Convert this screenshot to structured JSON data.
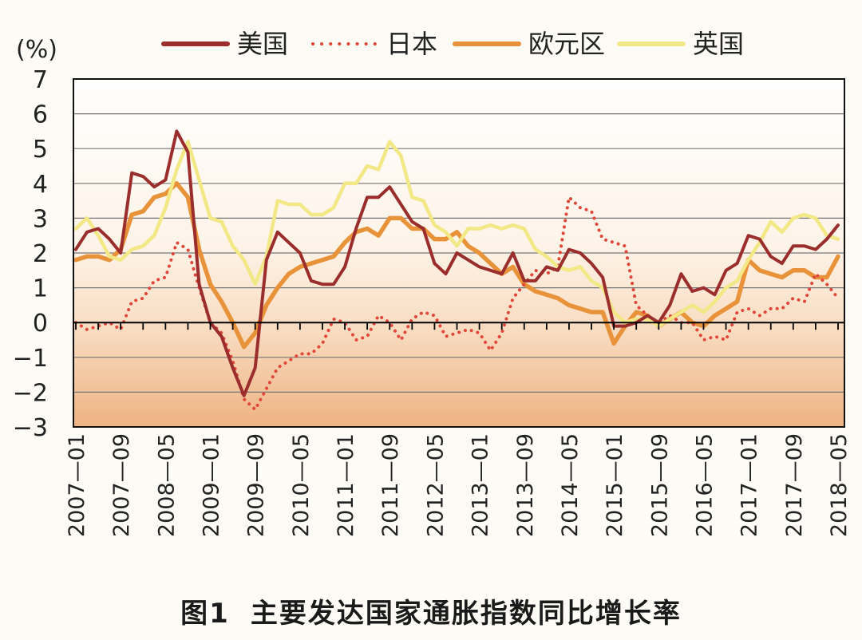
{
  "figure": {
    "number": "图1",
    "title": "主要发达国家通胀指数同比增长率"
  },
  "chart_data": {
    "type": "line",
    "ylabel": "(%)",
    "ylim": [
      -3,
      7
    ],
    "yticks": [
      "7",
      "6",
      "5",
      "4",
      "3",
      "2",
      "1",
      "0",
      "−1",
      "−2",
      "−3"
    ],
    "ytick_values": [
      7,
      6,
      5,
      4,
      3,
      2,
      1,
      0,
      -1,
      -2,
      -3
    ],
    "xticks": [
      "2007—01",
      "2007—09",
      "2008—05",
      "2009—01",
      "2009—09",
      "2010—05",
      "2011—01",
      "2011—09",
      "2012—05",
      "2013—01",
      "2013—09",
      "2014—05",
      "2015—01",
      "2015—09",
      "2016—05",
      "2017—01",
      "2017—09",
      "2018—05"
    ],
    "grid": true,
    "legend_position": "top",
    "series": [
      {
        "name": "美国",
        "color": "#9b2d2d",
        "style": "solid",
        "points": [
          [
            "2007-01",
            2.1
          ],
          [
            "2007-03",
            2.6
          ],
          [
            "2007-05",
            2.7
          ],
          [
            "2007-07",
            2.4
          ],
          [
            "2007-09",
            2.0
          ],
          [
            "2007-11",
            4.3
          ],
          [
            "2008-01",
            4.2
          ],
          [
            "2008-03",
            3.9
          ],
          [
            "2008-05",
            4.1
          ],
          [
            "2008-07",
            5.5
          ],
          [
            "2008-09",
            4.9
          ],
          [
            "2008-11",
            1.1
          ],
          [
            "2009-01",
            0.0
          ],
          [
            "2009-03",
            -0.4
          ],
          [
            "2009-05",
            -1.3
          ],
          [
            "2009-07",
            -2.1
          ],
          [
            "2009-09",
            -1.3
          ],
          [
            "2009-11",
            1.8
          ],
          [
            "2010-01",
            2.6
          ],
          [
            "2010-03",
            2.3
          ],
          [
            "2010-05",
            2.0
          ],
          [
            "2010-07",
            1.2
          ],
          [
            "2010-09",
            1.1
          ],
          [
            "2010-11",
            1.1
          ],
          [
            "2011-01",
            1.6
          ],
          [
            "2011-03",
            2.7
          ],
          [
            "2011-05",
            3.6
          ],
          [
            "2011-07",
            3.6
          ],
          [
            "2011-09",
            3.9
          ],
          [
            "2011-11",
            3.4
          ],
          [
            "2012-01",
            2.9
          ],
          [
            "2012-03",
            2.7
          ],
          [
            "2012-05",
            1.7
          ],
          [
            "2012-07",
            1.4
          ],
          [
            "2012-09",
            2.0
          ],
          [
            "2012-11",
            1.8
          ],
          [
            "2013-01",
            1.6
          ],
          [
            "2013-03",
            1.5
          ],
          [
            "2013-05",
            1.4
          ],
          [
            "2013-07",
            2.0
          ],
          [
            "2013-09",
            1.2
          ],
          [
            "2013-11",
            1.2
          ],
          [
            "2014-01",
            1.6
          ],
          [
            "2014-03",
            1.5
          ],
          [
            "2014-05",
            2.1
          ],
          [
            "2014-07",
            2.0
          ],
          [
            "2014-09",
            1.7
          ],
          [
            "2014-11",
            1.3
          ],
          [
            "2015-01",
            -0.1
          ],
          [
            "2015-03",
            -0.1
          ],
          [
            "2015-05",
            0.0
          ],
          [
            "2015-07",
            0.2
          ],
          [
            "2015-09",
            0.0
          ],
          [
            "2015-11",
            0.5
          ],
          [
            "2016-01",
            1.4
          ],
          [
            "2016-03",
            0.9
          ],
          [
            "2016-05",
            1.0
          ],
          [
            "2016-07",
            0.8
          ],
          [
            "2016-09",
            1.5
          ],
          [
            "2016-11",
            1.7
          ],
          [
            "2017-01",
            2.5
          ],
          [
            "2017-03",
            2.4
          ],
          [
            "2017-05",
            1.9
          ],
          [
            "2017-07",
            1.7
          ],
          [
            "2017-09",
            2.2
          ],
          [
            "2017-11",
            2.2
          ],
          [
            "2018-01",
            2.1
          ],
          [
            "2018-03",
            2.4
          ],
          [
            "2018-05",
            2.8
          ]
        ]
      },
      {
        "name": "日本",
        "color": "#e0463a",
        "style": "dotted",
        "points": [
          [
            "2007-01",
            0.0
          ],
          [
            "2007-03",
            -0.2
          ],
          [
            "2007-05",
            -0.1
          ],
          [
            "2007-07",
            0.0
          ],
          [
            "2007-09",
            -0.2
          ],
          [
            "2007-11",
            0.6
          ],
          [
            "2008-01",
            0.7
          ],
          [
            "2008-03",
            1.2
          ],
          [
            "2008-05",
            1.3
          ],
          [
            "2008-07",
            2.3
          ],
          [
            "2008-09",
            2.1
          ],
          [
            "2008-11",
            1.0
          ],
          [
            "2009-01",
            0.0
          ],
          [
            "2009-03",
            -0.3
          ],
          [
            "2009-05",
            -1.1
          ],
          [
            "2009-07",
            -2.2
          ],
          [
            "2009-09",
            -2.5
          ],
          [
            "2009-11",
            -1.9
          ],
          [
            "2010-01",
            -1.3
          ],
          [
            "2010-03",
            -1.1
          ],
          [
            "2010-05",
            -0.9
          ],
          [
            "2010-07",
            -0.9
          ],
          [
            "2010-09",
            -0.6
          ],
          [
            "2010-11",
            0.1
          ],
          [
            "2011-01",
            0.0
          ],
          [
            "2011-03",
            -0.5
          ],
          [
            "2011-05",
            -0.4
          ],
          [
            "2011-07",
            0.2
          ],
          [
            "2011-09",
            0.0
          ],
          [
            "2011-11",
            -0.5
          ],
          [
            "2012-01",
            0.1
          ],
          [
            "2012-03",
            0.3
          ],
          [
            "2012-05",
            0.2
          ],
          [
            "2012-07",
            -0.4
          ],
          [
            "2012-09",
            -0.3
          ],
          [
            "2012-11",
            -0.2
          ],
          [
            "2013-01",
            -0.3
          ],
          [
            "2013-03",
            -0.8
          ],
          [
            "2013-05",
            -0.3
          ],
          [
            "2013-07",
            0.7
          ],
          [
            "2013-09",
            1.1
          ],
          [
            "2013-11",
            1.5
          ],
          [
            "2014-01",
            1.4
          ],
          [
            "2014-03",
            1.6
          ],
          [
            "2014-05",
            3.6
          ],
          [
            "2014-07",
            3.3
          ],
          [
            "2014-09",
            3.2
          ],
          [
            "2014-11",
            2.4
          ],
          [
            "2015-01",
            2.3
          ],
          [
            "2015-03",
            2.2
          ],
          [
            "2015-05",
            0.5
          ],
          [
            "2015-07",
            0.2
          ],
          [
            "2015-09",
            0.0
          ],
          [
            "2015-11",
            0.2
          ],
          [
            "2016-01",
            0.0
          ],
          [
            "2016-03",
            0.0
          ],
          [
            "2016-05",
            -0.5
          ],
          [
            "2016-07",
            -0.4
          ],
          [
            "2016-09",
            -0.5
          ],
          [
            "2016-11",
            0.3
          ],
          [
            "2017-01",
            0.4
          ],
          [
            "2017-03",
            0.2
          ],
          [
            "2017-05",
            0.4
          ],
          [
            "2017-07",
            0.4
          ],
          [
            "2017-09",
            0.7
          ],
          [
            "2017-11",
            0.6
          ],
          [
            "2018-01",
            1.4
          ],
          [
            "2018-03",
            1.1
          ],
          [
            "2018-05",
            0.7
          ]
        ]
      },
      {
        "name": "欧元区",
        "color": "#e8923a",
        "style": "solid",
        "points": [
          [
            "2007-01",
            1.8
          ],
          [
            "2007-03",
            1.9
          ],
          [
            "2007-05",
            1.9
          ],
          [
            "2007-07",
            1.8
          ],
          [
            "2007-09",
            2.1
          ],
          [
            "2007-11",
            3.1
          ],
          [
            "2008-01",
            3.2
          ],
          [
            "2008-03",
            3.6
          ],
          [
            "2008-05",
            3.7
          ],
          [
            "2008-07",
            4.0
          ],
          [
            "2008-09",
            3.6
          ],
          [
            "2008-11",
            2.1
          ],
          [
            "2009-01",
            1.1
          ],
          [
            "2009-03",
            0.6
          ],
          [
            "2009-05",
            0.0
          ],
          [
            "2009-07",
            -0.7
          ],
          [
            "2009-09",
            -0.3
          ],
          [
            "2009-11",
            0.5
          ],
          [
            "2010-01",
            1.0
          ],
          [
            "2010-03",
            1.4
          ],
          [
            "2010-05",
            1.6
          ],
          [
            "2010-07",
            1.7
          ],
          [
            "2010-09",
            1.8
          ],
          [
            "2010-11",
            1.9
          ],
          [
            "2011-01",
            2.3
          ],
          [
            "2011-03",
            2.6
          ],
          [
            "2011-05",
            2.7
          ],
          [
            "2011-07",
            2.5
          ],
          [
            "2011-09",
            3.0
          ],
          [
            "2011-11",
            3.0
          ],
          [
            "2012-01",
            2.7
          ],
          [
            "2012-03",
            2.7
          ],
          [
            "2012-05",
            2.4
          ],
          [
            "2012-07",
            2.4
          ],
          [
            "2012-09",
            2.6
          ],
          [
            "2012-11",
            2.2
          ],
          [
            "2013-01",
            2.0
          ],
          [
            "2013-03",
            1.7
          ],
          [
            "2013-05",
            1.4
          ],
          [
            "2013-07",
            1.6
          ],
          [
            "2013-09",
            1.1
          ],
          [
            "2013-11",
            0.9
          ],
          [
            "2014-01",
            0.8
          ],
          [
            "2014-03",
            0.7
          ],
          [
            "2014-05",
            0.5
          ],
          [
            "2014-07",
            0.4
          ],
          [
            "2014-09",
            0.3
          ],
          [
            "2014-11",
            0.3
          ],
          [
            "2015-01",
            -0.6
          ],
          [
            "2015-03",
            -0.1
          ],
          [
            "2015-05",
            0.3
          ],
          [
            "2015-07",
            0.2
          ],
          [
            "2015-09",
            -0.1
          ],
          [
            "2015-11",
            0.1
          ],
          [
            "2016-01",
            0.3
          ],
          [
            "2016-03",
            0.0
          ],
          [
            "2016-05",
            -0.1
          ],
          [
            "2016-07",
            0.2
          ],
          [
            "2016-09",
            0.4
          ],
          [
            "2016-11",
            0.6
          ],
          [
            "2017-01",
            1.8
          ],
          [
            "2017-03",
            1.5
          ],
          [
            "2017-05",
            1.4
          ],
          [
            "2017-07",
            1.3
          ],
          [
            "2017-09",
            1.5
          ],
          [
            "2017-11",
            1.5
          ],
          [
            "2018-01",
            1.3
          ],
          [
            "2018-03",
            1.3
          ],
          [
            "2018-05",
            1.9
          ]
        ]
      },
      {
        "name": "英国",
        "color": "#f2e886",
        "style": "solid",
        "points": [
          [
            "2007-01",
            2.7
          ],
          [
            "2007-03",
            3.0
          ],
          [
            "2007-05",
            2.5
          ],
          [
            "2007-07",
            1.9
          ],
          [
            "2007-09",
            1.8
          ],
          [
            "2007-11",
            2.1
          ],
          [
            "2008-01",
            2.2
          ],
          [
            "2008-03",
            2.5
          ],
          [
            "2008-05",
            3.3
          ],
          [
            "2008-07",
            4.4
          ],
          [
            "2008-09",
            5.2
          ],
          [
            "2008-11",
            4.1
          ],
          [
            "2009-01",
            3.0
          ],
          [
            "2009-03",
            2.9
          ],
          [
            "2009-05",
            2.2
          ],
          [
            "2009-07",
            1.8
          ],
          [
            "2009-09",
            1.1
          ],
          [
            "2009-11",
            1.9
          ],
          [
            "2010-01",
            3.5
          ],
          [
            "2010-03",
            3.4
          ],
          [
            "2010-05",
            3.4
          ],
          [
            "2010-07",
            3.1
          ],
          [
            "2010-09",
            3.1
          ],
          [
            "2010-11",
            3.3
          ],
          [
            "2011-01",
            4.0
          ],
          [
            "2011-03",
            4.0
          ],
          [
            "2011-05",
            4.5
          ],
          [
            "2011-07",
            4.4
          ],
          [
            "2011-09",
            5.2
          ],
          [
            "2011-11",
            4.8
          ],
          [
            "2012-01",
            3.6
          ],
          [
            "2012-03",
            3.5
          ],
          [
            "2012-05",
            2.8
          ],
          [
            "2012-07",
            2.6
          ],
          [
            "2012-09",
            2.2
          ],
          [
            "2012-11",
            2.7
          ],
          [
            "2013-01",
            2.7
          ],
          [
            "2013-03",
            2.8
          ],
          [
            "2013-05",
            2.7
          ],
          [
            "2013-07",
            2.8
          ],
          [
            "2013-09",
            2.7
          ],
          [
            "2013-11",
            2.1
          ],
          [
            "2014-01",
            1.9
          ],
          [
            "2014-03",
            1.6
          ],
          [
            "2014-05",
            1.5
          ],
          [
            "2014-07",
            1.6
          ],
          [
            "2014-09",
            1.2
          ],
          [
            "2014-11",
            1.0
          ],
          [
            "2015-01",
            0.3
          ],
          [
            "2015-03",
            0.0
          ],
          [
            "2015-05",
            0.1
          ],
          [
            "2015-07",
            0.1
          ],
          [
            "2015-09",
            -0.1
          ],
          [
            "2015-11",
            0.1
          ],
          [
            "2016-01",
            0.3
          ],
          [
            "2016-03",
            0.5
          ],
          [
            "2016-05",
            0.3
          ],
          [
            "2016-07",
            0.6
          ],
          [
            "2016-09",
            1.0
          ],
          [
            "2016-11",
            1.2
          ],
          [
            "2017-01",
            1.8
          ],
          [
            "2017-03",
            2.3
          ],
          [
            "2017-05",
            2.9
          ],
          [
            "2017-07",
            2.6
          ],
          [
            "2017-09",
            3.0
          ],
          [
            "2017-11",
            3.1
          ],
          [
            "2018-01",
            3.0
          ],
          [
            "2018-03",
            2.5
          ],
          [
            "2018-05",
            2.4
          ]
        ]
      }
    ]
  }
}
